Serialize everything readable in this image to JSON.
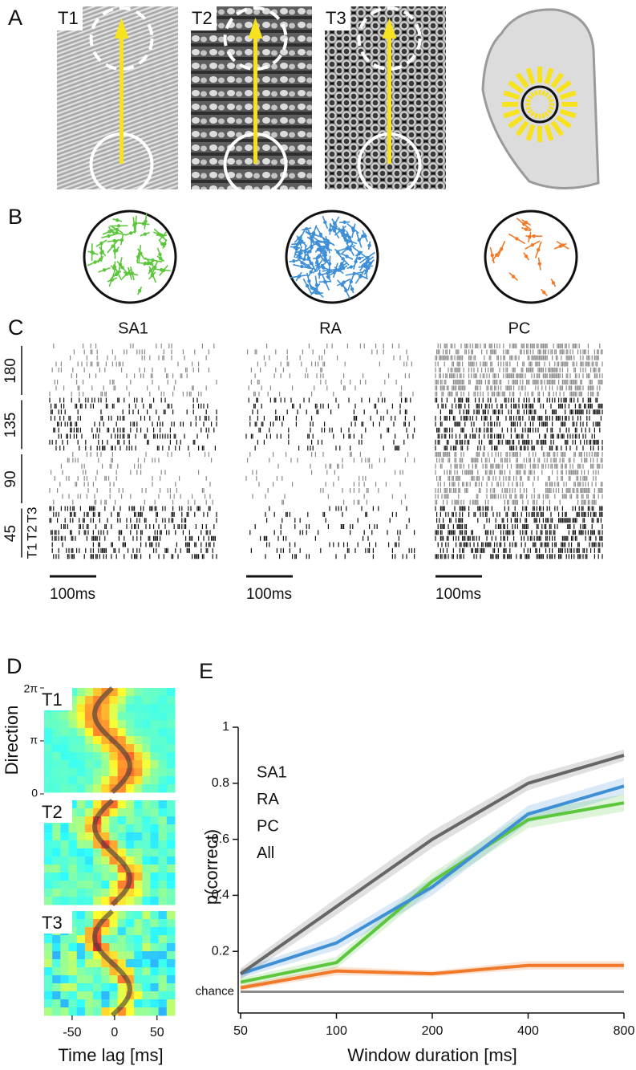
{
  "panel_labels": [
    "A",
    "B",
    "C",
    "D",
    "E"
  ],
  "textures": [
    "T1",
    "T2",
    "T3"
  ],
  "panel_c": {
    "afferent_classes": [
      "SA1",
      "RA",
      "PC"
    ],
    "directions": [
      "180",
      "135",
      "90",
      "45"
    ],
    "scale_bar": "100ms"
  },
  "panel_d": {
    "y_label": "Direction",
    "y_ticks": [
      "2π",
      "π",
      "0"
    ],
    "x_label": "Time lag [ms]",
    "xlim": [
      -83,
      71
    ],
    "xticks": [
      -50,
      0,
      50
    ]
  },
  "chart_data": {
    "type": "line",
    "x_label": "Window duration [ms]",
    "y_label": "p(correct)",
    "x": [
      50,
      100,
      200,
      400,
      800
    ],
    "xlim": [
      50,
      800
    ],
    "xticks": [
      50,
      100,
      200,
      400,
      800
    ],
    "x_scale": "log",
    "ylim": [
      -0.02,
      1
    ],
    "yticks": [
      0.2,
      0.4,
      0.6,
      0.8,
      1
    ],
    "legend": "upper left",
    "series": [
      {
        "name": "SA1",
        "color": "#5cc63c",
        "values": [
          0.09,
          0.16,
          0.45,
          0.67,
          0.73
        ],
        "errors": [
          0.015,
          0.02,
          0.03,
          0.03,
          0.03
        ]
      },
      {
        "name": "RA",
        "color": "#3f8fd6",
        "values": [
          0.12,
          0.23,
          0.43,
          0.69,
          0.79
        ],
        "errors": [
          0.015,
          0.025,
          0.03,
          0.03,
          0.03
        ]
      },
      {
        "name": "PC",
        "color": "#f07a2a",
        "values": [
          0.07,
          0.13,
          0.12,
          0.15,
          0.15
        ],
        "errors": [
          0.01,
          0.015,
          0.01,
          0.015,
          0.015
        ]
      },
      {
        "name": "All",
        "color": "#666666",
        "values": [
          0.12,
          0.36,
          0.6,
          0.8,
          0.9
        ],
        "errors": [
          0.02,
          0.03,
          0.03,
          0.025,
          0.02
        ]
      }
    ],
    "chance": {
      "label": "chance",
      "value": 0.056,
      "color": "#8a8a8a"
    }
  }
}
